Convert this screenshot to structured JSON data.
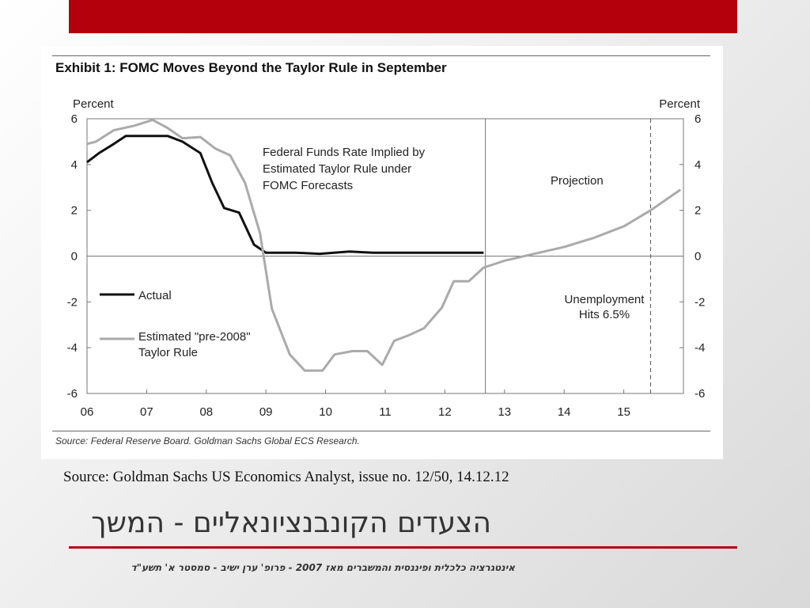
{
  "colors": {
    "accent": "#b3000c",
    "actual": "#111111",
    "estimated": "#aaaaaa"
  },
  "exhibit": {
    "title": "Exhibit 1: FOMC Moves Beyond the Taylor Rule in September",
    "source": "Source: Federal Reserve Board. Goldman Sachs Global ECS Research."
  },
  "chart_data": {
    "type": "line",
    "ylabel_left": "Percent",
    "ylabel_right": "Percent",
    "ylim": [
      -6,
      6
    ],
    "yticks": [
      6,
      4,
      2,
      0,
      -2,
      -4,
      -6
    ],
    "xlim": [
      2006.0,
      2016.0
    ],
    "xticks": [
      "06",
      "07",
      "08",
      "09",
      "10",
      "11",
      "12",
      "13",
      "14",
      "15"
    ],
    "grid": false,
    "series": [
      {
        "name": "Actual",
        "x": [
          2006.0,
          2006.2,
          2006.45,
          2006.65,
          2007.0,
          2007.35,
          2007.6,
          2007.9,
          2008.1,
          2008.3,
          2008.55,
          2008.8,
          2009.0,
          2009.15,
          2009.5,
          2009.9,
          2010.4,
          2010.8,
          2011.5,
          2012.0,
          2012.65
        ],
        "y": [
          4.1,
          4.5,
          4.9,
          5.25,
          5.25,
          5.25,
          5.0,
          4.5,
          3.2,
          2.1,
          1.9,
          0.5,
          0.15,
          0.15,
          0.15,
          0.1,
          0.2,
          0.15,
          0.15,
          0.15,
          0.15
        ]
      },
      {
        "name": "Estimated \"pre-2008\" Taylor Rule",
        "x": [
          2006.0,
          2006.15,
          2006.45,
          2006.8,
          2007.1,
          2007.35,
          2007.6,
          2007.9,
          2008.15,
          2008.4,
          2008.65,
          2008.9,
          2009.1,
          2009.4,
          2009.65,
          2009.95,
          2010.15,
          2010.45,
          2010.7,
          2010.95,
          2011.15,
          2011.4,
          2011.65,
          2011.95,
          2012.15,
          2012.4,
          2012.65,
          2013.0,
          2013.5,
          2014.0,
          2014.5,
          2015.0,
          2015.45,
          2015.95
        ],
        "y": [
          4.9,
          5.0,
          5.5,
          5.7,
          5.95,
          5.6,
          5.15,
          5.2,
          4.7,
          4.4,
          3.2,
          1.0,
          -2.3,
          -4.3,
          -5.0,
          -5.0,
          -4.3,
          -4.15,
          -4.15,
          -4.75,
          -3.7,
          -3.45,
          -3.15,
          -2.25,
          -1.1,
          -1.1,
          -0.5,
          -0.2,
          0.1,
          0.4,
          0.8,
          1.3,
          2.0,
          2.9
        ]
      }
    ],
    "annotations": {
      "implied": [
        "Federal Funds Rate Implied by",
        "Estimated Taylor Rule under",
        "FOMC Forecasts"
      ],
      "projection": "Projection",
      "unemployment": [
        "Unemployment",
        "Hits 6.5%"
      ]
    },
    "legend": {
      "actual": "Actual",
      "estimated": [
        "Estimated \"pre-2008\"",
        "Taylor Rule"
      ]
    },
    "markers": {
      "projection_start": 2012.68,
      "unemployment_threshold": 2015.45
    }
  },
  "slide": {
    "source_note": "Source: Goldman Sachs US Economics Analyst, issue no. 12/50, 14.12.12",
    "title": "הצעדים הקונבנציונאליים - המשך",
    "footer": "אינטגרציה כלכלית ופיננסית והמשברים מאז 2007 - פרופ' ערן ישיב - סמסטר א' תשע\"ד"
  }
}
